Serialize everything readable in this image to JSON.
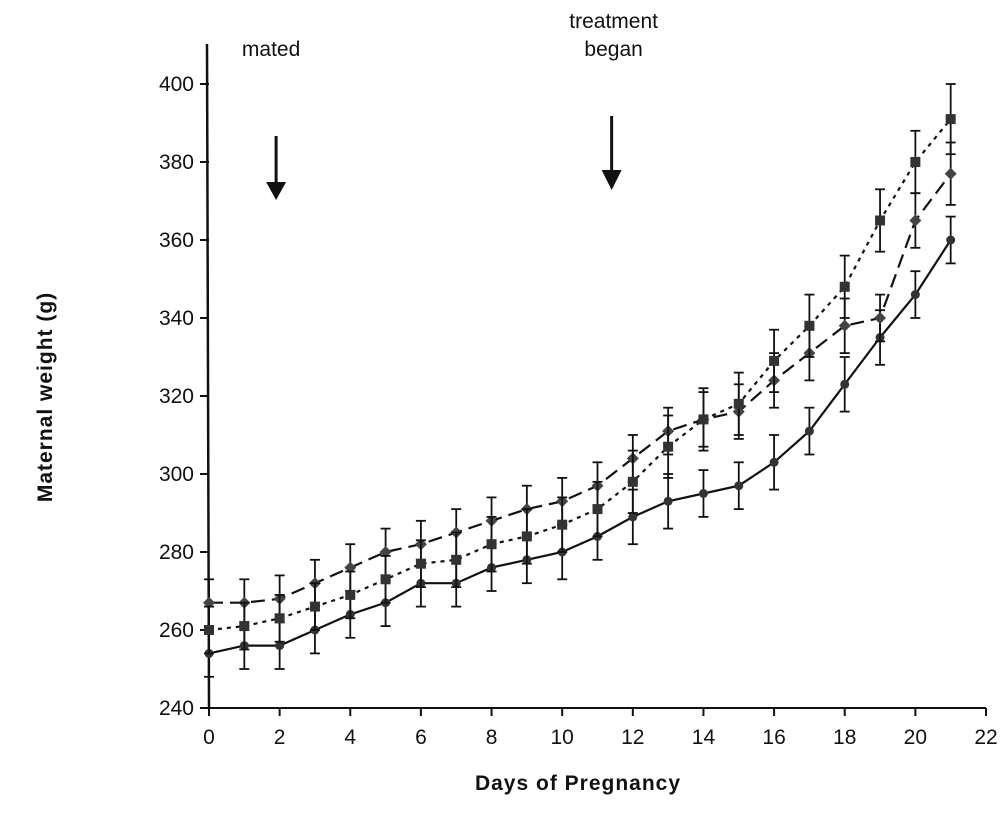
{
  "chart_data": {
    "type": "line",
    "title": "",
    "xlabel": "Days of Pregnancy",
    "ylabel": "Maternal weight (g)",
    "xlim": [
      0,
      22
    ],
    "ylim": [
      240,
      400
    ],
    "xticks": [
      0,
      2,
      4,
      6,
      8,
      10,
      12,
      14,
      16,
      18,
      20,
      22
    ],
    "yticks": [
      240,
      260,
      280,
      300,
      320,
      340,
      360,
      380,
      400
    ],
    "x": [
      0,
      1,
      2,
      3,
      4,
      5,
      6,
      7,
      8,
      9,
      10,
      11,
      12,
      13,
      14,
      15,
      16,
      17,
      18,
      19,
      20,
      21
    ],
    "grid": false,
    "series": [
      {
        "style": "solid",
        "marker": "filled-circle",
        "values": [
          254,
          256,
          256,
          260,
          264,
          267,
          272,
          272,
          276,
          278,
          280,
          284,
          289,
          293,
          295,
          297,
          303,
          311,
          323,
          335,
          346,
          360
        ],
        "errors": [
          6,
          6,
          6,
          6,
          6,
          6,
          6,
          6,
          6,
          6,
          7,
          6,
          7,
          7,
          6,
          6,
          7,
          6,
          7,
          7,
          6,
          6
        ]
      },
      {
        "style": "dashed",
        "marker": "filled-diamond",
        "values": [
          267,
          267,
          268,
          272,
          276,
          280,
          282,
          285,
          288,
          291,
          293,
          297,
          304,
          311,
          314,
          316,
          324,
          331,
          338,
          340,
          365,
          377
        ],
        "errors": [
          6,
          6,
          6,
          6,
          6,
          6,
          6,
          6,
          6,
          6,
          6,
          6,
          6,
          6,
          7,
          7,
          7,
          7,
          7,
          6,
          7,
          8
        ]
      },
      {
        "style": "dotted",
        "marker": "filled-square",
        "values": [
          260,
          261,
          263,
          266,
          269,
          273,
          277,
          278,
          282,
          284,
          287,
          291,
          298,
          307,
          314,
          318,
          329,
          338,
          348,
          365,
          380,
          391
        ],
        "errors": [
          6,
          6,
          6,
          6,
          6,
          6,
          6,
          7,
          7,
          7,
          7,
          7,
          8,
          8,
          8,
          8,
          8,
          8,
          8,
          8,
          8,
          9
        ]
      }
    ],
    "annotations": [
      {
        "line1": "mated",
        "line2": "",
        "x": 1.9
      },
      {
        "line1": "treatment",
        "line2": "began",
        "x": 11.4
      }
    ]
  }
}
